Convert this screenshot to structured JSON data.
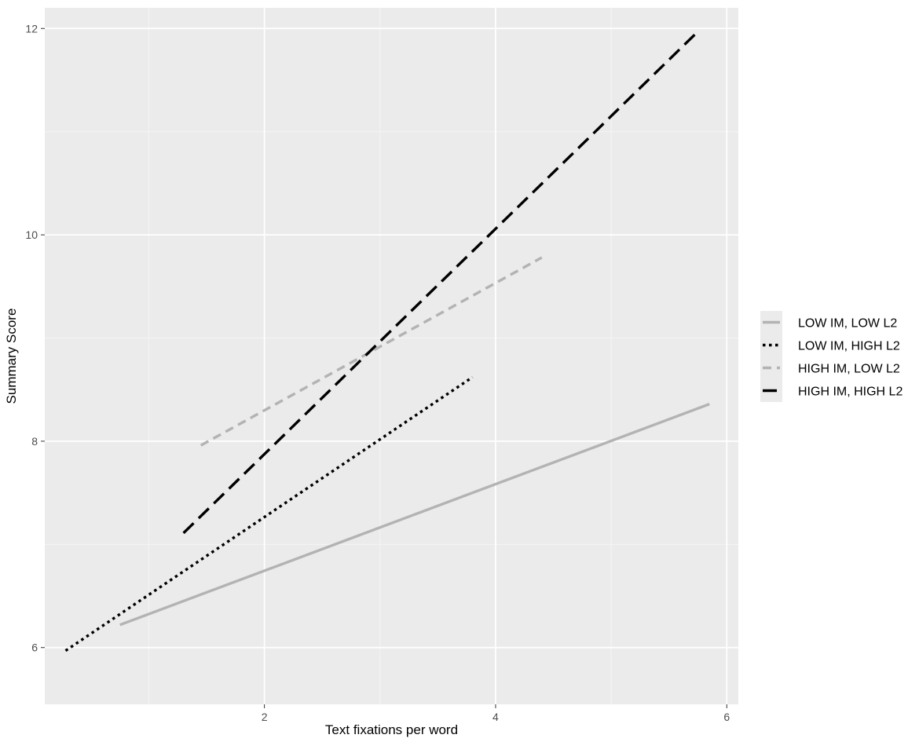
{
  "chart_data": {
    "type": "line",
    "title": "",
    "xlabel": "Text fixations per word",
    "ylabel": "Summary Score",
    "xlim": [
      0.1,
      6.1
    ],
    "ylim": [
      5.45,
      12.2
    ],
    "x_ticks": [
      2,
      4,
      6
    ],
    "x_tick_labels": [
      "2",
      "4",
      "6"
    ],
    "y_ticks": [
      6,
      8,
      10,
      12
    ],
    "y_tick_labels": [
      "6",
      "8",
      "10",
      "12"
    ],
    "grid": true,
    "legend_position": "right",
    "series": [
      {
        "name": "LOW IM, LOW L2",
        "x": [
          0.75,
          5.85
        ],
        "y": [
          6.22,
          8.36
        ],
        "color": "#b3b3b3",
        "dash": "solid"
      },
      {
        "name": "LOW IM, HIGH L2",
        "x": [
          0.28,
          3.8
        ],
        "y": [
          5.97,
          8.62
        ],
        "color": "#000000",
        "dash": "dotted"
      },
      {
        "name": "HIGH IM, LOW L2",
        "x": [
          1.45,
          4.4
        ],
        "y": [
          7.96,
          9.78
        ],
        "color": "#b3b3b3",
        "dash": "dashed"
      },
      {
        "name": "HIGH IM, HIGH L2",
        "x": [
          1.3,
          5.75
        ],
        "y": [
          7.11,
          11.97
        ],
        "color": "#000000",
        "dash": "longdash"
      }
    ]
  }
}
